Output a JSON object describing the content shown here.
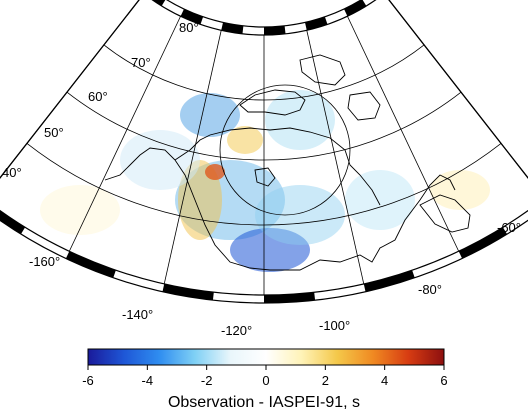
{
  "map": {
    "projection": "conic",
    "region": "North America / Arctic",
    "latitude_labels": [
      "40°",
      "50°",
      "60°",
      "70°",
      "80°"
    ],
    "longitude_labels": [
      "-160°",
      "-140°",
      "-120°",
      "-100°",
      "-80°",
      "-60°"
    ],
    "anomalies": [
      {
        "label": "negative",
        "color": "#2f7fd8"
      },
      {
        "label": "positive",
        "color": "#f2c24a"
      }
    ]
  },
  "colorbar": {
    "ticks": [
      "-6",
      "-4",
      "-2",
      "0",
      "2",
      "4",
      "6"
    ],
    "title": "Observation - IASPEI-91, s",
    "colors": [
      "#1a1a9a",
      "#1e56d6",
      "#2f8df0",
      "#7fd0f5",
      "#e9f6fb",
      "#ffffff",
      "#fff3b8",
      "#f4c84a",
      "#f08a22",
      "#d73c12",
      "#8c0f0f"
    ]
  }
}
